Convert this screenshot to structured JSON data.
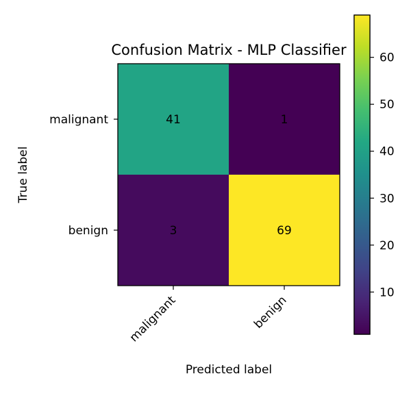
{
  "chart_data": {
    "type": "heatmap",
    "title": "Confusion Matrix - MLP Classifier",
    "xlabel": "Predicted label",
    "ylabel": "True label",
    "x_categories": [
      "malignant",
      "benign"
    ],
    "y_categories": [
      "malignant",
      "benign"
    ],
    "values": [
      [
        41,
        1
      ],
      [
        3,
        69
      ]
    ],
    "colormap": "viridis",
    "colorbar": {
      "range": [
        1,
        69
      ],
      "ticks": [
        10,
        20,
        30,
        40,
        50,
        60
      ]
    }
  }
}
